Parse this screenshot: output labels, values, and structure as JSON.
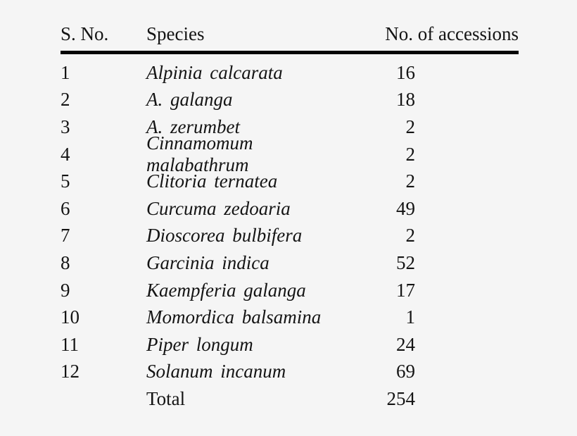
{
  "page": {
    "background_color": "#f5f5f5",
    "text_color": "#141414",
    "rule_color": "#050505"
  },
  "table": {
    "headers": {
      "sno": "S. No.",
      "species": "Species",
      "accessions": "No. of accessions"
    },
    "rows": [
      {
        "sno": "1",
        "species": "Alpinia calcarata",
        "accessions": "16"
      },
      {
        "sno": "2",
        "species": "A. galanga",
        "accessions": "18"
      },
      {
        "sno": "3",
        "species": "A. zerumbet",
        "accessions": "2"
      },
      {
        "sno": "4",
        "species": "Cinnamomum malabathrum",
        "accessions": "2"
      },
      {
        "sno": "5",
        "species": "Clitoria ternatea",
        "accessions": "2"
      },
      {
        "sno": "6",
        "species": "Curcuma zedoaria",
        "accessions": "49"
      },
      {
        "sno": "7",
        "species": "Dioscorea bulbifera",
        "accessions": "2"
      },
      {
        "sno": "8",
        "species": "Garcinia indica",
        "accessions": "52"
      },
      {
        "sno": "9",
        "species": "Kaempferia galanga",
        "accessions": "17"
      },
      {
        "sno": "10",
        "species": "Momordica balsamina",
        "accessions": "1"
      },
      {
        "sno": "11",
        "species": "Piper longum",
        "accessions": "24"
      },
      {
        "sno": "12",
        "species": "Solanum incanum",
        "accessions": "69"
      },
      {
        "sno": "",
        "species": "Total",
        "accessions": "254"
      }
    ]
  },
  "chart_data": {
    "type": "table",
    "columns": [
      "S. No.",
      "Species",
      "No. of accessions"
    ],
    "rows": [
      [
        1,
        "Alpinia calcarata",
        16
      ],
      [
        2,
        "A. galanga",
        18
      ],
      [
        3,
        "A. zerumbet",
        2
      ],
      [
        4,
        "Cinnamomum malabathrum",
        2
      ],
      [
        5,
        "Clitoria ternatea",
        2
      ],
      [
        6,
        "Curcuma zedoaria",
        49
      ],
      [
        7,
        "Dioscorea bulbifera",
        2
      ],
      [
        8,
        "Garcinia indica",
        52
      ],
      [
        9,
        "Kaempferia galanga",
        17
      ],
      [
        10,
        "Momordica balsamina",
        1
      ],
      [
        11,
        "Piper longum",
        24
      ],
      [
        12,
        "Solanum incanum",
        69
      ]
    ],
    "total_label": "Total",
    "total_value": 254
  }
}
